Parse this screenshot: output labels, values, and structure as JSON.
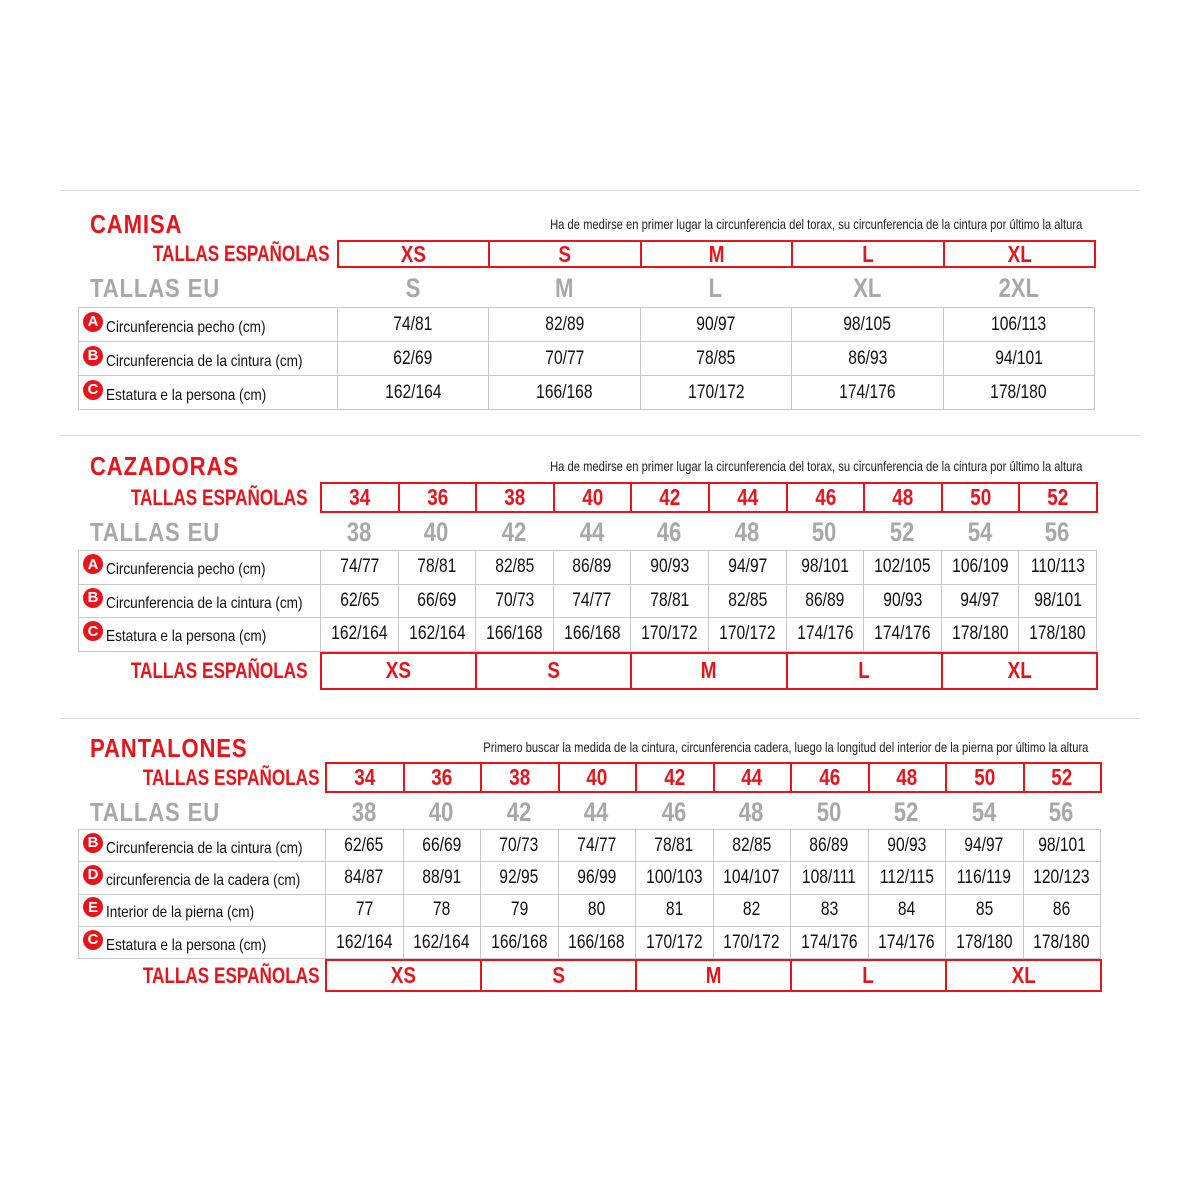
{
  "colors": {
    "accent": "#e8141c",
    "eu_gray": "#a8a8a8"
  },
  "sections": [
    {
      "title": "CAMISA",
      "note": "Ha de medirse en primer lugar la circunferencia del torax, su circunferencia de la cintura por último la altura",
      "spanish_label": "TALLAS ESPAÑOLAS",
      "spanish_sizes": [
        "XS",
        "S",
        "M",
        "L",
        "XL"
      ],
      "eu_label": "TALLAS EU",
      "eu_sizes": [
        "S",
        "M",
        "L",
        "XL",
        "2XL"
      ],
      "rows": [
        {
          "badge": "A",
          "label": "Circunferencia pecho (cm)",
          "values": [
            "74/81",
            "82/89",
            "90/97",
            "98/105",
            "106/113"
          ]
        },
        {
          "badge": "B",
          "label": "Circunferencia de la cintura (cm)",
          "values": [
            "62/69",
            "70/77",
            "78/85",
            "86/93",
            "94/101"
          ]
        },
        {
          "badge": "C",
          "label": "Estatura e la persona (cm)",
          "values": [
            "162/164",
            "166/168",
            "170/172",
            "174/176",
            "178/180"
          ]
        }
      ]
    },
    {
      "title": "CAZADORAS",
      "note": "Ha de medirse en primer lugar la circunferencia del torax, su circunferencia de la cintura por último la altura",
      "spanish_label": "TALLAS ESPAÑOLAS",
      "spanish_sizes": [
        "34",
        "36",
        "38",
        "40",
        "42",
        "44",
        "46",
        "48",
        "50",
        "52"
      ],
      "eu_label": "TALLAS EU",
      "eu_sizes": [
        "38",
        "40",
        "42",
        "44",
        "46",
        "48",
        "50",
        "52",
        "54",
        "56"
      ],
      "rows": [
        {
          "badge": "A",
          "label": "Circunferencia pecho (cm)",
          "values": [
            "74/77",
            "78/81",
            "82/85",
            "86/89",
            "90/93",
            "94/97",
            "98/101",
            "102/105",
            "106/109",
            "110/113"
          ]
        },
        {
          "badge": "B",
          "label": "Circunferencia de la cintura (cm)",
          "values": [
            "62/65",
            "66/69",
            "70/73",
            "74/77",
            "78/81",
            "82/85",
            "86/89",
            "90/93",
            "94/97",
            "98/101"
          ]
        },
        {
          "badge": "C",
          "label": "Estatura e la persona (cm)",
          "values": [
            "162/164",
            "162/164",
            "166/168",
            "166/168",
            "170/172",
            "170/172",
            "174/176",
            "174/176",
            "178/180",
            "178/180"
          ]
        }
      ],
      "bottom": {
        "label": "TALLAS ESPAÑOLAS",
        "sizes": [
          "XS",
          "S",
          "M",
          "L",
          "XL"
        ]
      }
    },
    {
      "title": "PANTALONES",
      "note": "Primero buscar la medida de la cintura, circunferencia cadera, luego la longitud del interior de la pierna por último la altura",
      "spanish_label": "TALLAS ESPAÑOLAS",
      "spanish_sizes": [
        "34",
        "36",
        "38",
        "40",
        "42",
        "44",
        "46",
        "48",
        "50",
        "52"
      ],
      "eu_label": "TALLAS EU",
      "eu_sizes": [
        "38",
        "40",
        "42",
        "44",
        "46",
        "48",
        "50",
        "52",
        "54",
        "56"
      ],
      "rows": [
        {
          "badge": "B",
          "label": "Circunferencia de la cintura (cm)",
          "values": [
            "62/65",
            "66/69",
            "70/73",
            "74/77",
            "78/81",
            "82/85",
            "86/89",
            "90/93",
            "94/97",
            "98/101"
          ]
        },
        {
          "badge": "D",
          "label": "circunferencia de la cadera (cm)",
          "values": [
            "84/87",
            "88/91",
            "92/95",
            "96/99",
            "100/103",
            "104/107",
            "108/111",
            "112/115",
            "116/119",
            "120/123"
          ]
        },
        {
          "badge": "E",
          "label": "Interior de la pierna (cm)",
          "values": [
            "77",
            "78",
            "79",
            "80",
            "81",
            "82",
            "83",
            "84",
            "85",
            "86"
          ]
        },
        {
          "badge": "C",
          "label": "Estatura e la persona (cm)",
          "values": [
            "162/164",
            "162/164",
            "166/168",
            "166/168",
            "170/172",
            "170/172",
            "174/176",
            "174/176",
            "178/180",
            "178/180"
          ]
        }
      ],
      "bottom": {
        "label": "TALLAS ESPAÑOLAS",
        "sizes": [
          "XS",
          "S",
          "M",
          "L",
          "XL"
        ]
      }
    }
  ]
}
